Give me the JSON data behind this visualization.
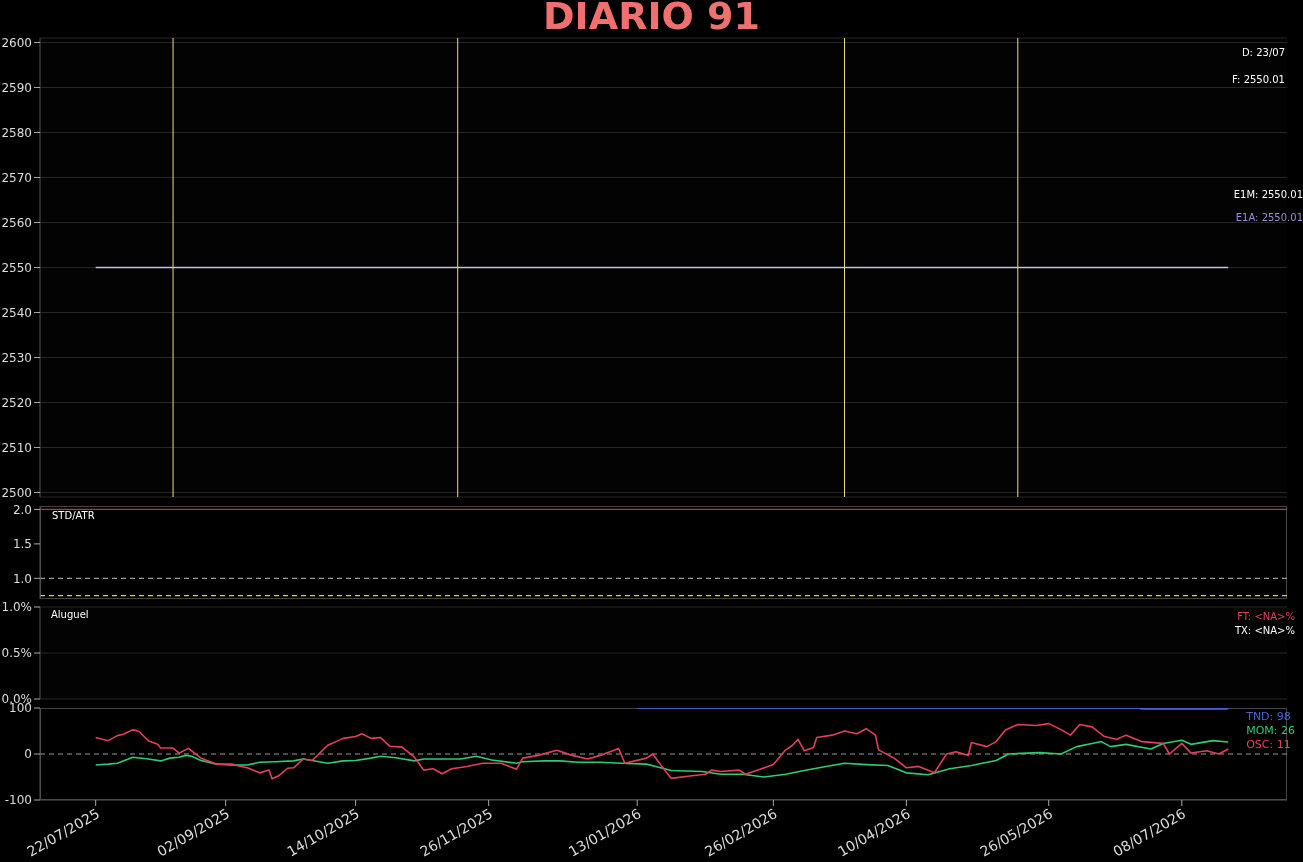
{
  "chart_data": [
    {
      "type": "line",
      "title": "DIARIO 91",
      "xlim": [
        "2025-07-04",
        "2026-08-11"
      ],
      "ylim": [
        2499,
        2601
      ],
      "yticks": [
        2500,
        2510,
        2520,
        2530,
        2540,
        2550,
        2560,
        2570,
        2580,
        2590,
        2600
      ],
      "grid": "y",
      "tick_labels": "y",
      "series": [
        {
          "color": "#c8c0dc",
          "x": [
            "2025-07-22",
            "2026-07-23"
          ],
          "values": [
            2550,
            2550
          ]
        }
      ],
      "ref_lines": [
        {
          "axis": "x",
          "value": "2025-08-16",
          "color": "#e8e07a"
        },
        {
          "axis": "x",
          "value": "2025-11-16",
          "color": "#e8e07a"
        },
        {
          "axis": "x",
          "value": "2026-03-21",
          "color": "#e8e07a"
        },
        {
          "axis": "x",
          "value": "2026-05-16",
          "color": "#e8e07a"
        }
      ],
      "annotations": [
        "D: 23/07",
        "F: 2550.01",
        "E1M: 2550.01",
        "E1A: 2550.01"
      ]
    },
    {
      "type": "line",
      "xlim": [
        "2025-07-04",
        "2026-08-11"
      ],
      "ylim": [
        0.7,
        2.05
      ],
      "yticks": [
        {
          "value": 1,
          "label": "1.0"
        },
        1.5,
        {
          "value": 2,
          "label": "2.0"
        }
      ],
      "tick_labels": "y",
      "ref_lines": [
        {
          "axis": "y",
          "value": 2.0,
          "color": "#c0304a",
          "line_style": "solid"
        },
        {
          "axis": "y",
          "value": 1.0,
          "color": "#9a9a9a",
          "line_style": "dashed"
        },
        {
          "axis": "y",
          "value": 0.75,
          "color": "#e0d020",
          "line_style": "dashed"
        }
      ],
      "annotations": [
        "STD/ATR"
      ]
    },
    {
      "type": "line",
      "xlim": [
        "2025-07-04",
        "2026-08-11"
      ],
      "ylim": [
        0,
        1
      ],
      "yticks": [
        {
          "value": 0,
          "label": "0.0%"
        },
        {
          "value": 0.5,
          "label": "0.5%"
        },
        {
          "value": 1,
          "label": "1.0%"
        }
      ],
      "grid": "y",
      "tick_labels": "y",
      "annotations": [
        "Aluguel",
        "FT: <NA>%",
        "TX: <NA>%"
      ]
    },
    {
      "type": "line",
      "xlim": [
        "2025-07-04",
        "2026-08-11"
      ],
      "ylim": [
        -100,
        100
      ],
      "yticks": [
        -100,
        0,
        100
      ],
      "legend": "top right",
      "xticks": [
        {
          "value": "2025-07-22",
          "label": "22/07/2025"
        },
        {
          "value": "2025-09-02",
          "label": "02/09/2025"
        },
        {
          "value": "2025-10-14",
          "label": "14/10/2025"
        },
        {
          "value": "2025-11-26",
          "label": "26/11/2025"
        },
        {
          "value": "2026-01-13",
          "label": "13/01/2026"
        },
        {
          "value": "2026-02-26",
          "label": "26/02/2026"
        },
        {
          "value": "2026-04-10",
          "label": "10/04/2026"
        },
        {
          "value": "2026-05-26",
          "label": "26/05/2026"
        },
        {
          "value": "2026-07-08",
          "label": "08/07/2026"
        }
      ],
      "series": [
        {
          "name": "TND: 98",
          "color": "#4a62d8",
          "x": [
            "2026-01-13",
            "2026-06-24",
            "2026-06-25",
            "2026-07-23"
          ],
          "values": [
            100,
            100,
            98,
            98
          ]
        },
        {
          "name": "MOM: 26",
          "color": "#2ecc71",
          "x": [
            "2025-07-22",
            "2025-07-26",
            "2025-07-29",
            "2025-08-03",
            "2025-08-08",
            "2025-08-12",
            "2025-08-15",
            "2025-08-18",
            "2025-08-20",
            "2025-08-22",
            "2025-08-25",
            "2025-08-30",
            "2025-09-04",
            "2025-09-09",
            "2025-09-13",
            "2025-09-18",
            "2025-09-24",
            "2025-09-27",
            "2025-09-30",
            "2025-10-05",
            "2025-10-10",
            "2025-10-14",
            "2025-10-19",
            "2025-10-22",
            "2025-10-27",
            "2025-11-02",
            "2025-11-05",
            "2025-11-11",
            "2025-11-17",
            "2025-11-22",
            "2025-11-27",
            "2025-12-05",
            "2025-12-07",
            "2025-12-14",
            "2025-12-19",
            "2025-12-25",
            "2026-01-01",
            "2026-01-08",
            "2026-01-16",
            "2026-01-19",
            "2026-01-24",
            "2026-02-03",
            "2026-02-09",
            "2026-02-16",
            "2026-02-23",
            "2026-03-02",
            "2026-03-08",
            "2026-03-15",
            "2026-03-21",
            "2026-03-28",
            "2026-04-04",
            "2026-04-10",
            "2026-04-17",
            "2026-04-24",
            "2026-05-01",
            "2026-05-09",
            "2026-05-13",
            "2026-05-23",
            "2026-05-30",
            "2026-06-04",
            "2026-06-09",
            "2026-06-12",
            "2026-06-15",
            "2026-06-20",
            "2026-06-28",
            "2026-07-02",
            "2026-07-08",
            "2026-07-11",
            "2026-07-18",
            "2026-07-23"
          ],
          "values": [
            -24,
            -22,
            -20,
            -7,
            -11,
            -15,
            -9,
            -7,
            -3,
            -5,
            -14,
            -22,
            -24,
            -24,
            -18,
            -17,
            -15,
            -11,
            -14,
            -20,
            -15,
            -14,
            -9,
            -5,
            -8,
            -15,
            -11,
            -11,
            -11,
            -5,
            -13,
            -20,
            -17,
            -15,
            -15,
            -18,
            -18,
            -20,
            -22,
            -27,
            -36,
            -38,
            -44,
            -44,
            -50,
            -44,
            -36,
            -27,
            -20,
            -23,
            -25,
            -41,
            -45,
            -32,
            -25,
            -14,
            0,
            3,
            0,
            16,
            23,
            27,
            16,
            21,
            11,
            23,
            30,
            21,
            29,
            26
          ]
        },
        {
          "name": "OSC: 11",
          "color": "#e0405a",
          "x": [
            "2025-07-22",
            "2025-07-26",
            "2025-07-29",
            "2025-07-31",
            "2025-08-03",
            "2025-08-05",
            "2025-08-08",
            "2025-08-11",
            "2025-08-12",
            "2025-08-16",
            "2025-08-18",
            "2025-08-20",
            "2025-08-21",
            "2025-08-25",
            "2025-08-30",
            "2025-09-04",
            "2025-09-07",
            "2025-09-09",
            "2025-09-13",
            "2025-09-16",
            "2025-09-17",
            "2025-09-19",
            "2025-09-22",
            "2025-09-24",
            "2025-09-27",
            "2025-09-30",
            "2025-10-05",
            "2025-10-10",
            "2025-10-14",
            "2025-10-16",
            "2025-10-19",
            "2025-10-22",
            "2025-10-25",
            "2025-10-29",
            "2025-11-02",
            "2025-11-05",
            "2025-11-08",
            "2025-11-11",
            "2025-11-14",
            "2025-11-19",
            "2025-11-24",
            "2025-11-30",
            "2025-12-05",
            "2025-12-07",
            "2025-12-12",
            "2025-12-18",
            "2025-12-23",
            "2025-12-28",
            "2026-01-01",
            "2026-01-07",
            "2026-01-09",
            "2026-01-16",
            "2026-01-18",
            "2026-01-22",
            "2026-01-24",
            "2026-01-30",
            "2026-02-04",
            "2026-02-06",
            "2026-02-09",
            "2026-02-15",
            "2026-02-17",
            "2026-02-21",
            "2026-02-26",
            "2026-03-02",
            "2026-03-04",
            "2026-03-06",
            "2026-03-08",
            "2026-03-11",
            "2026-03-12",
            "2026-03-17",
            "2026-03-21",
            "2026-03-25",
            "2026-03-28",
            "2026-03-31",
            "2026-04-01",
            "2026-04-06",
            "2026-04-10",
            "2026-04-14",
            "2026-04-19",
            "2026-04-23",
            "2026-04-26",
            "2026-04-30",
            "2026-05-01",
            "2026-05-06",
            "2026-05-09",
            "2026-05-12",
            "2026-05-16",
            "2026-05-22",
            "2026-05-26",
            "2026-05-30",
            "2026-06-02",
            "2026-06-05",
            "2026-06-09",
            "2026-06-13",
            "2026-06-17",
            "2026-06-20",
            "2026-06-25",
            "2026-07-02",
            "2026-07-04",
            "2026-07-08",
            "2026-07-11",
            "2026-07-16",
            "2026-07-20",
            "2026-07-23"
          ],
          "values": [
            36,
            29,
            40,
            43,
            53,
            49,
            29,
            21,
            13,
            13,
            2,
            9,
            12,
            -9,
            -22,
            -22,
            -27,
            -30,
            -41,
            -35,
            -54,
            -48,
            -31,
            -30,
            -11,
            -14,
            19,
            34,
            38,
            44,
            34,
            36,
            17,
            15,
            -7,
            -35,
            -32,
            -43,
            -32,
            -27,
            -20,
            -20,
            -33,
            -9,
            -3,
            8,
            -3,
            -11,
            -3,
            12,
            -20,
            -9,
            0,
            -36,
            -53,
            -48,
            -44,
            -35,
            -38,
            -35,
            -44,
            -35,
            -23,
            9,
            18,
            32,
            7,
            14,
            36,
            41,
            50,
            44,
            55,
            41,
            9,
            -9,
            -30,
            -27,
            -41,
            0,
            5,
            -3,
            25,
            16,
            27,
            52,
            64,
            62,
            66,
            53,
            41,
            64,
            59,
            38,
            32,
            41,
            27,
            23,
            0,
            23,
            2,
            7,
            0,
            11
          ]
        }
      ],
      "ref_lines": [
        {
          "axis": "y",
          "value": 0,
          "color": "#9a9a9a",
          "line_style": "dashed"
        }
      ]
    }
  ]
}
